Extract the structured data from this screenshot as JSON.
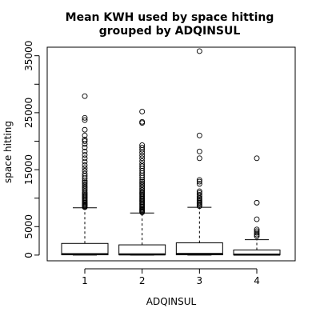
{
  "chart_data": {
    "type": "boxplot",
    "title_line1": "Mean KWH used by space hitting",
    "title_line2": "grouped by ADQINSUL",
    "xlabel": "ADQINSUL",
    "ylabel": "space hitting",
    "ylim": [
      -1000,
      36500
    ],
    "yticks": [
      0,
      5000,
      15000,
      25000,
      35000
    ],
    "ytick_labels": [
      "0",
      "5000",
      "15000",
      "25000",
      "35000"
    ],
    "ytick_minor": [
      10000,
      20000,
      30000
    ],
    "categories": [
      "1",
      "2",
      "3",
      "4"
    ],
    "boxes": [
      {
        "category": "1",
        "whisker_low": 0,
        "q1": 50,
        "median": 150,
        "q3": 2050,
        "whisker_high": 8300,
        "outliers": [
          8400,
          8550,
          8700,
          8850,
          9000,
          9200,
          9400,
          9600,
          9800,
          10000,
          10200,
          10400,
          10600,
          10800,
          11000,
          11300,
          11600,
          11900,
          12200,
          12500,
          12800,
          13100,
          13500,
          13900,
          14300,
          14800,
          15300,
          15800,
          16400,
          17000,
          17600,
          18200,
          18900,
          19500,
          20000,
          20300,
          21000,
          22000,
          23700,
          24100,
          27900
        ]
      },
      {
        "category": "2",
        "whisker_low": 0,
        "q1": 50,
        "median": 120,
        "q3": 1800,
        "whisker_high": 7400,
        "outliers": [
          7500,
          7650,
          7800,
          7950,
          8100,
          8300,
          8500,
          8700,
          8900,
          9100,
          9300,
          9500,
          9700,
          9900,
          10100,
          10300,
          10500,
          10700,
          10900,
          11100,
          11400,
          11700,
          12000,
          12300,
          12600,
          12900,
          13200,
          13600,
          14000,
          14400,
          14800,
          15200,
          15600,
          16000,
          16500,
          17000,
          17500,
          18000,
          18500,
          18900,
          19300,
          23200,
          23400,
          25200
        ]
      },
      {
        "category": "3",
        "whisker_low": 0,
        "q1": 50,
        "median": 200,
        "q3": 2150,
        "whisker_high": 8400,
        "outliers": [
          8600,
          8800,
          9000,
          9200,
          9400,
          9600,
          9800,
          10000,
          10300,
          10600,
          10900,
          11200,
          12500,
          12900,
          13200,
          17000,
          18200,
          21000,
          35800
        ]
      },
      {
        "category": "4",
        "whisker_low": 0,
        "q1": 30,
        "median": 90,
        "q3": 900,
        "whisker_high": 2700,
        "outliers": [
          3300,
          3600,
          3900,
          4200,
          4500,
          6300,
          9200,
          17000
        ]
      }
    ]
  }
}
